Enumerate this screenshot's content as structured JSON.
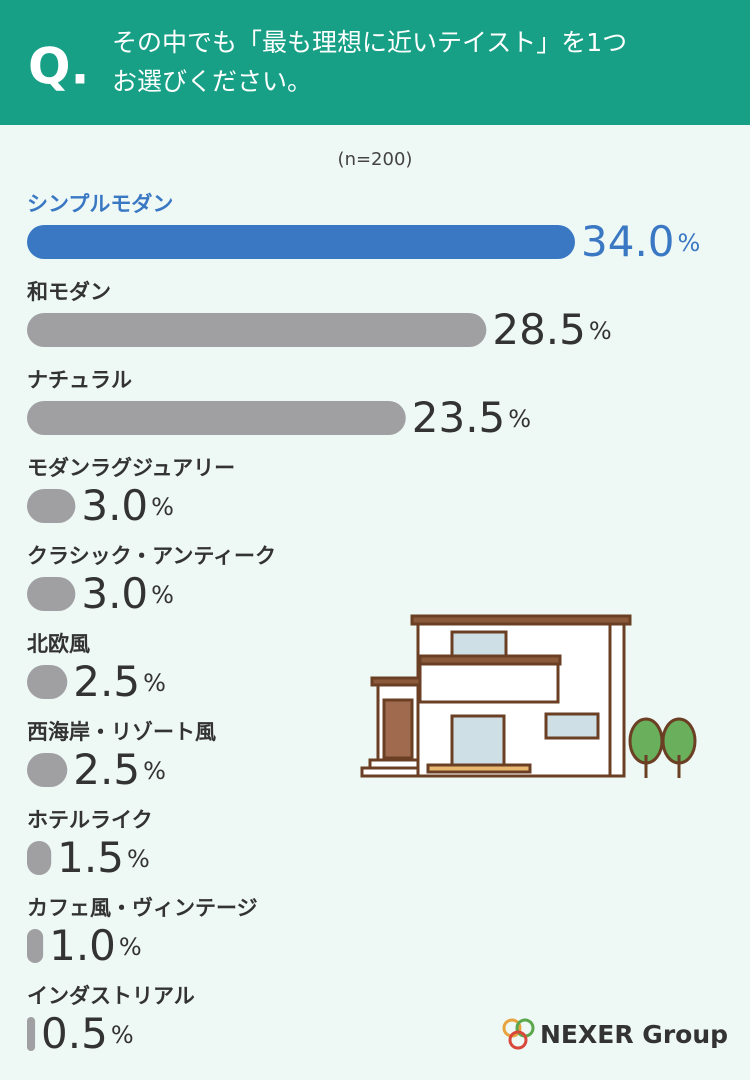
{
  "header": {
    "mark": "Q.",
    "question_lines": [
      "その中でも「最も理想に近いテイスト」を1つ",
      "お選びください。"
    ]
  },
  "chart_data": {
    "type": "bar",
    "orientation": "horizontal",
    "note": "(n=200)",
    "categories": [
      "シンプルモダン",
      "和モダン",
      "ナチュラル",
      "モダンラグジュアリー",
      "クラシック・アンティーク",
      "北欧風",
      "西海岸・リゾート風",
      "ホテルライク",
      "カフェ風・ヴィンテージ",
      "インダストリアル"
    ],
    "values": [
      34.0,
      28.5,
      23.5,
      3.0,
      3.0,
      2.5,
      2.5,
      1.5,
      1.0,
      0.5
    ],
    "value_labels": [
      "34.0",
      "28.5",
      "23.5",
      "3.0",
      "3.0",
      "2.5",
      "2.5",
      "1.5",
      "1.0",
      "0.5"
    ],
    "unit": "%",
    "color": "#a0a0a2",
    "colors": [
      "#3a78c4",
      "#a0a0a2",
      "#a0a0a2",
      "#a0a0a2",
      "#a0a0a2",
      "#a0a0a2",
      "#a0a0a2",
      "#a0a0a2",
      "#a0a0a2",
      "#a0a0a2"
    ],
    "xlim": [
      0,
      34.0
    ]
  },
  "footer": {
    "logo": "NEXER Group"
  }
}
